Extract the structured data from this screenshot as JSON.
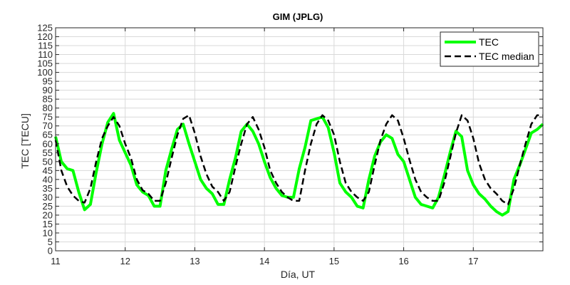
{
  "chart_data": {
    "type": "line",
    "title": "GIM (JPLG)",
    "xlabel": "Día, UT",
    "ylabel": "TEC [TECU]",
    "xlim": [
      11,
      18
    ],
    "ylim": [
      0,
      125
    ],
    "x_ticks": [
      "11",
      "12",
      "13",
      "14",
      "15",
      "16",
      "17"
    ],
    "y_ticks": [
      "0",
      "5",
      "10",
      "15",
      "20",
      "25",
      "30",
      "35",
      "40",
      "45",
      "50",
      "55",
      "60",
      "65",
      "70",
      "75",
      "80",
      "85",
      "90",
      "95",
      "100",
      "105",
      "110",
      "115",
      "120",
      "125"
    ],
    "grid": true,
    "legend_position": "top-right",
    "series": [
      {
        "name": "TEC",
        "color": "#00ff00",
        "style": "solid",
        "x": [
          11.0,
          11.083,
          11.167,
          11.25,
          11.333,
          11.417,
          11.5,
          11.583,
          11.667,
          11.75,
          11.833,
          11.917,
          12.0,
          12.083,
          12.167,
          12.25,
          12.333,
          12.417,
          12.5,
          12.583,
          12.667,
          12.75,
          12.833,
          12.917,
          13.0,
          13.083,
          13.167,
          13.25,
          13.333,
          13.417,
          13.5,
          13.583,
          13.667,
          13.75,
          13.833,
          13.917,
          14.0,
          14.083,
          14.167,
          14.25,
          14.333,
          14.417,
          14.5,
          14.583,
          14.667,
          14.75,
          14.833,
          14.917,
          15.0,
          15.083,
          15.167,
          15.25,
          15.333,
          15.417,
          15.5,
          15.583,
          15.667,
          15.75,
          15.833,
          15.917,
          16.0,
          16.083,
          16.167,
          16.25,
          16.333,
          16.417,
          16.5,
          16.583,
          16.667,
          16.75,
          16.833,
          16.917,
          17.0,
          17.083,
          17.167,
          17.25,
          17.333,
          17.417,
          17.5,
          17.583,
          17.667,
          17.75,
          17.833,
          17.917,
          18.0
        ],
        "y": [
          64,
          50,
          46,
          45,
          33,
          23,
          26,
          44,
          60,
          72,
          77,
          62,
          55,
          48,
          37,
          33,
          31,
          25,
          25,
          45,
          57,
          68,
          71,
          60,
          50,
          40,
          35,
          32,
          26,
          26,
          40,
          52,
          67,
          71,
          67,
          60,
          50,
          41,
          35,
          31,
          30,
          30,
          46,
          58,
          73,
          74,
          75,
          69,
          55,
          38,
          33,
          30,
          25,
          24,
          40,
          53,
          61,
          65,
          63,
          54,
          50,
          40,
          30,
          26,
          25,
          24,
          30,
          42,
          55,
          67,
          64,
          45,
          37,
          32,
          29,
          25,
          22,
          20,
          22,
          40,
          48,
          57,
          66,
          68,
          71
        ]
      },
      {
        "name": "TEC median",
        "color": "#000000",
        "style": "dashed",
        "x": [
          11.0,
          11.083,
          11.167,
          11.25,
          11.333,
          11.417,
          11.5,
          11.583,
          11.667,
          11.75,
          11.833,
          11.917,
          12.0,
          12.083,
          12.167,
          12.25,
          12.333,
          12.417,
          12.5,
          12.583,
          12.667,
          12.75,
          12.833,
          12.917,
          13.0,
          13.083,
          13.167,
          13.25,
          13.333,
          13.417,
          13.5,
          13.583,
          13.667,
          13.75,
          13.833,
          13.917,
          14.0,
          14.083,
          14.167,
          14.25,
          14.333,
          14.417,
          14.5,
          14.583,
          14.667,
          14.75,
          14.833,
          14.917,
          15.0,
          15.083,
          15.167,
          15.25,
          15.333,
          15.417,
          15.5,
          15.583,
          15.667,
          15.75,
          15.833,
          15.917,
          16.0,
          16.083,
          16.167,
          16.25,
          16.333,
          16.417,
          16.5,
          16.583,
          16.667,
          16.75,
          16.833,
          16.917,
          17.0,
          17.083,
          17.167,
          17.25,
          17.333,
          17.417,
          17.5,
          17.583,
          17.667,
          17.75,
          17.833,
          17.917,
          18.0
        ],
        "y": [
          62,
          45,
          36,
          31,
          28,
          27,
          35,
          50,
          63,
          70,
          75,
          70,
          60,
          52,
          40,
          34,
          32,
          28,
          28,
          38,
          52,
          65,
          74,
          76,
          66,
          53,
          43,
          36,
          33,
          28,
          33,
          47,
          60,
          71,
          75,
          68,
          58,
          45,
          38,
          33,
          30,
          28,
          28,
          45,
          60,
          71,
          76,
          73,
          65,
          50,
          38,
          33,
          30,
          28,
          33,
          48,
          62,
          71,
          76,
          73,
          63,
          51,
          40,
          33,
          30,
          28,
          28,
          38,
          52,
          66,
          76,
          73,
          63,
          49,
          40,
          35,
          32,
          28,
          26,
          35,
          48,
          60,
          71,
          76,
          76
        ]
      }
    ]
  }
}
